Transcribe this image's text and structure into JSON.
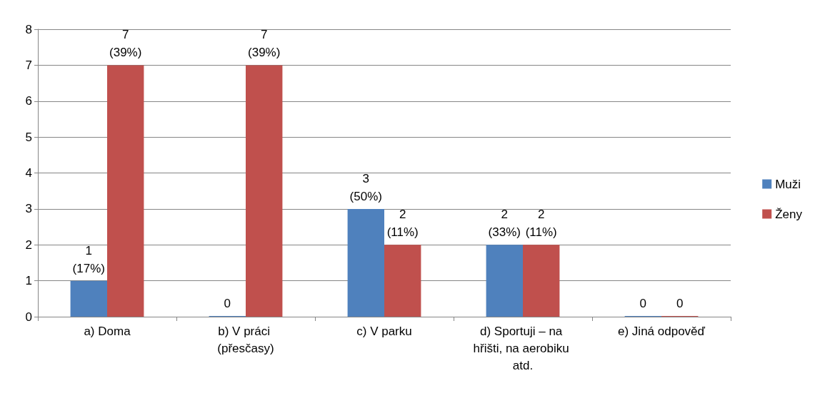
{
  "chart_data": {
    "type": "bar",
    "categories": [
      "a) Doma",
      "b) V práci (přesčasy)",
      "c) V parku",
      "d) Sportuji – na hřišti, na aerobiku atd.",
      "e) Jiná odpověď"
    ],
    "series": [
      {
        "name": "Muži",
        "color": "#4f81bd",
        "values": [
          1,
          0,
          3,
          2,
          0
        ],
        "value_labels": [
          "1\n(17%)",
          "0",
          "3\n(50%)",
          "2\n(33%)",
          "0"
        ]
      },
      {
        "name": "Ženy",
        "color": "#c0504d",
        "values": [
          7,
          7,
          2,
          2,
          0
        ],
        "value_labels": [
          "7\n(39%)",
          "7\n(39%)",
          "2\n(11%)",
          "2\n(11%)",
          "0"
        ]
      }
    ],
    "ylim": [
      0,
      8
    ],
    "yticks": [
      0,
      1,
      2,
      3,
      4,
      5,
      6,
      7,
      8
    ],
    "grid": "y",
    "legend": "right"
  }
}
